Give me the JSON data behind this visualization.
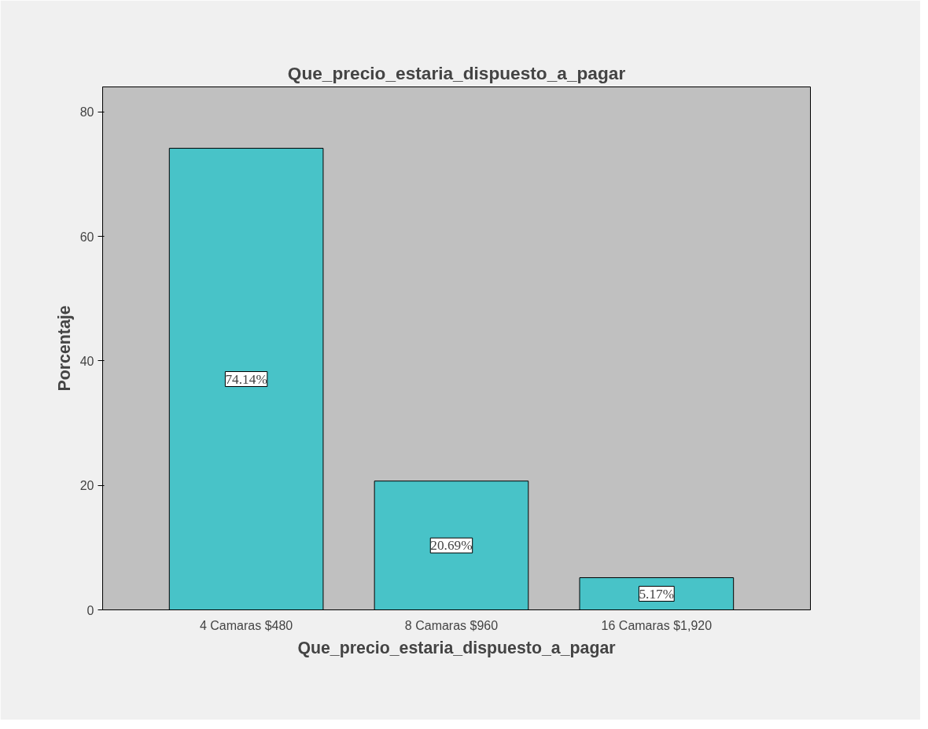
{
  "chart_data": {
    "type": "bar",
    "title": "Que_precio_estaria_dispuesto_a_pagar",
    "xlabel": "Que_precio_estaria_dispuesto_a_pagar",
    "ylabel": "Porcentaje",
    "categories": [
      "4 Camaras $480",
      "8 Camaras $960",
      "16 Camaras $1,920"
    ],
    "values": [
      74.14,
      20.69,
      5.17
    ],
    "value_labels": [
      "74.14%",
      "20.69%",
      "5.17%"
    ],
    "color": "#48c3c8",
    "ylim": [
      0,
      84
    ],
    "yticks": [
      0,
      20,
      40,
      60,
      80
    ],
    "grid": false
  }
}
